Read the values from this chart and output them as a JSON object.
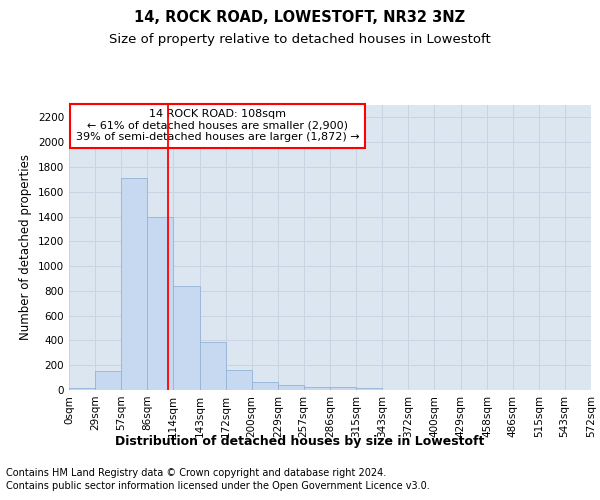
{
  "title": "14, ROCK ROAD, LOWESTOFT, NR32 3NZ",
  "subtitle": "Size of property relative to detached houses in Lowestoft",
  "xlabel": "Distribution of detached houses by size in Lowestoft",
  "ylabel": "Number of detached properties",
  "bar_values": [
    20,
    155,
    1710,
    1400,
    840,
    385,
    165,
    65,
    38,
    28,
    28,
    18,
    0,
    0,
    0,
    0,
    0,
    0,
    0,
    0
  ],
  "bin_edges": [
    0,
    29,
    57,
    86,
    114,
    143,
    172,
    200,
    229,
    257,
    286,
    315,
    343,
    372,
    400,
    429,
    458,
    486,
    515,
    543,
    572
  ],
  "tick_labels": [
    "0sqm",
    "29sqm",
    "57sqm",
    "86sqm",
    "114sqm",
    "143sqm",
    "172sqm",
    "200sqm",
    "229sqm",
    "257sqm",
    "286sqm",
    "315sqm",
    "343sqm",
    "372sqm",
    "400sqm",
    "429sqm",
    "458sqm",
    "486sqm",
    "515sqm",
    "543sqm",
    "572sqm"
  ],
  "bar_facecolor": "#c6d9f0",
  "bar_edgecolor": "#95b3d7",
  "grid_color": "#c8d4e4",
  "background_color": "#dce6f1",
  "vline_x": 108,
  "vline_color": "red",
  "ylim": [
    0,
    2300
  ],
  "yticks": [
    0,
    200,
    400,
    600,
    800,
    1000,
    1200,
    1400,
    1600,
    1800,
    2000,
    2200
  ],
  "annotation_text": "14 ROCK ROAD: 108sqm\n← 61% of detached houses are smaller (2,900)\n39% of semi-detached houses are larger (1,872) →",
  "footer_line1": "Contains HM Land Registry data © Crown copyright and database right 2024.",
  "footer_line2": "Contains public sector information licensed under the Open Government Licence v3.0.",
  "title_fontsize": 10.5,
  "subtitle_fontsize": 9.5,
  "xlabel_fontsize": 9,
  "ylabel_fontsize": 8.5,
  "tick_fontsize": 7.5,
  "annotation_fontsize": 8,
  "footer_fontsize": 7
}
